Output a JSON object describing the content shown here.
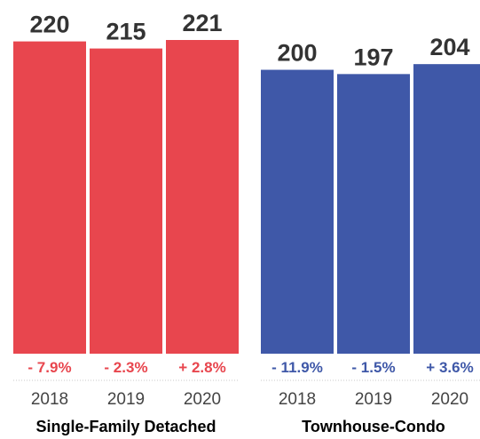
{
  "chart_data": {
    "type": "bar",
    "title": "",
    "xlabel": "",
    "ylabel": "",
    "ylim": [
      0,
      221
    ],
    "groups": [
      {
        "name": "Single-Family Detached",
        "color": "#e8464e",
        "categories": [
          "2018",
          "2019",
          "2020"
        ],
        "values": [
          220,
          215,
          221
        ],
        "value_labels": [
          "220",
          "215",
          "221"
        ],
        "changes": [
          "- 7.9%",
          "- 2.3%",
          "+ 2.8%"
        ]
      },
      {
        "name": "Townhouse-Condo",
        "color": "#3f58a8",
        "categories": [
          "2018",
          "2019",
          "2020"
        ],
        "values": [
          200,
          197,
          204
        ],
        "value_labels": [
          "200",
          "197",
          "204"
        ],
        "changes": [
          "- 11.9%",
          "- 1.5%",
          "+ 3.6%"
        ]
      }
    ]
  }
}
